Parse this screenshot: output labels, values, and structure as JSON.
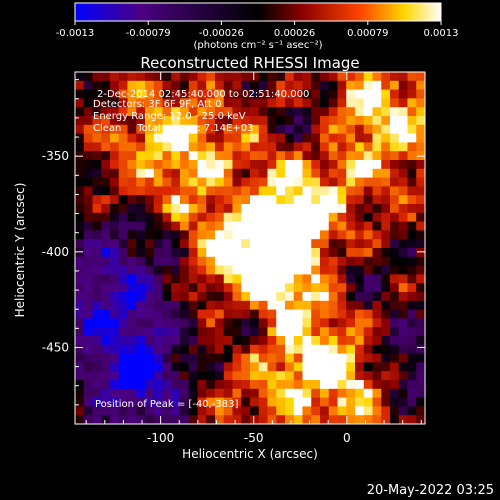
{
  "colorbar": {
    "ticks": [
      "-0.0013",
      "-0.00079",
      "-0.00026",
      "0.00026",
      "0.00079",
      "0.0013"
    ],
    "units_label": "(photons cm⁻² s⁻¹ asec⁻²)",
    "colors": [
      "#0000ff",
      "#4b0082",
      "#000000",
      "#8b0000",
      "#ff4500",
      "#ffd700",
      "#ffffff"
    ]
  },
  "chart_data": {
    "type": "heatmap",
    "title": "Reconstructed RHESSI Image",
    "xlabel": "Heliocentric X (arcsec)",
    "ylabel": "Heliocentric Y (arcsec)",
    "xlim": [
      -146,
      42
    ],
    "ylim": [
      -490,
      -306
    ],
    "xticks": [
      -100,
      -50,
      0
    ],
    "yticks": [
      -350,
      -400,
      -450
    ],
    "info_lines": [
      "2-Dec-2014 02:45:40.000 to 02:51:40.000",
      "Detectors: 3F 6F 9F, Att 0",
      "Energy Range: 12.0 - 25.0 keV",
      "Clean     Total counts: 7.14E+03"
    ],
    "peak_label": "Position of Peak = [-40,-383]",
    "peak": [
      -40,
      -383
    ],
    "image_grid_size": [
      40,
      40
    ]
  },
  "footer": {
    "date": "20-May-2022 03:25"
  }
}
